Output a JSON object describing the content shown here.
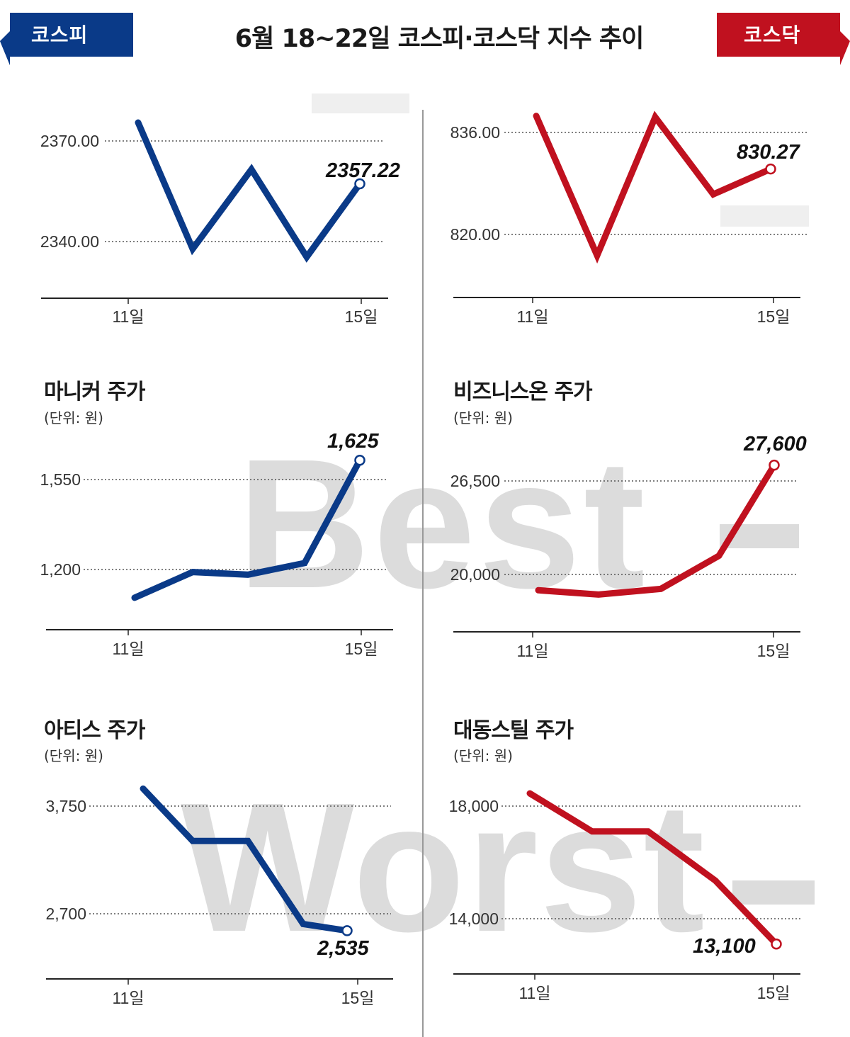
{
  "header": {
    "title": "6월 18~22일  코스피·코스닥 지수 추이",
    "left_badge": "코스피",
    "right_badge": "코스닥"
  },
  "watermarks": {
    "best": "Best",
    "worst": "Worst"
  },
  "colors": {
    "kospi": "#0a3a88",
    "kosdaq": "#c0111f",
    "grid": "#555555"
  },
  "chart_data": [
    {
      "id": "kospi",
      "type": "line",
      "title": "",
      "unit": "",
      "color": "#0a3a88",
      "x_ticks": [
        "11일",
        "15일"
      ],
      "y_ticks": [
        "2370.00",
        "2340.00"
      ],
      "end_label": "2357.22",
      "series": [
        {
          "values": [
            2375.5,
            2337.8,
            2361.5,
            2335.4,
            2357.22
          ]
        }
      ]
    },
    {
      "id": "kosdaq",
      "type": "line",
      "title": "",
      "unit": "",
      "color": "#c0111f",
      "x_ticks": [
        "11일",
        "15일"
      ],
      "y_ticks": [
        "836.00",
        "820.00"
      ],
      "end_label": "830.27",
      "series": [
        {
          "values": [
            838.6,
            816.7,
            838.4,
            826.3,
            830.27
          ]
        }
      ]
    },
    {
      "id": "manicker",
      "type": "line",
      "title": "마니커 주가",
      "unit": "(단위: 원)",
      "color": "#0a3a88",
      "x_ticks": [
        "11일",
        "15일"
      ],
      "y_ticks": [
        "1,550",
        "1,200"
      ],
      "end_label": "1,625",
      "series": [
        {
          "values": [
            1090,
            1190,
            1180,
            1225,
            1625
          ]
        }
      ]
    },
    {
      "id": "businesson",
      "type": "line",
      "title": "비즈니스온 주가",
      "unit": "(단위: 원)",
      "color": "#c0111f",
      "x_ticks": [
        "11일",
        "15일"
      ],
      "y_ticks": [
        "26,500",
        "20,000"
      ],
      "end_label": "27,600",
      "series": [
        {
          "values": [
            18900,
            18600,
            19000,
            21300,
            27600
          ]
        }
      ]
    },
    {
      "id": "atis",
      "type": "line",
      "title": "아티스 주가",
      "unit": "(단위: 원)",
      "color": "#0a3a88",
      "x_ticks": [
        "11일",
        "15일"
      ],
      "y_ticks": [
        "3,750",
        "2,700"
      ],
      "end_label": "2,535",
      "series": [
        {
          "values": [
            3920,
            3410,
            3410,
            2600,
            2535
          ]
        }
      ]
    },
    {
      "id": "daedong",
      "type": "line",
      "title": "대동스틸 주가",
      "unit": "(단위: 원)",
      "color": "#c0111f",
      "x_ticks": [
        "11일",
        "15일"
      ],
      "y_ticks": [
        "18,000",
        "14,000"
      ],
      "end_label": "13,100",
      "series": [
        {
          "values": [
            18450,
            17100,
            17100,
            15350,
            13100
          ]
        }
      ]
    }
  ]
}
